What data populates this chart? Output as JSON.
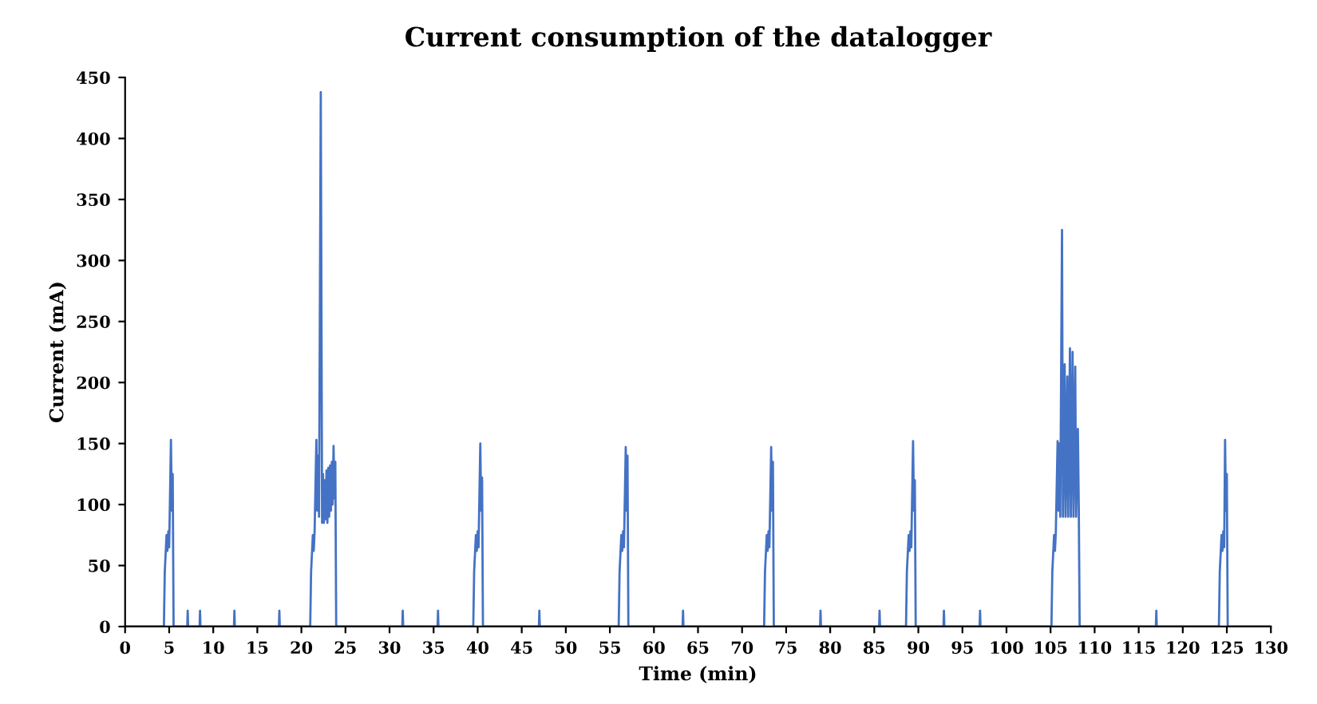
{
  "chart_data": {
    "type": "line",
    "title": "Current consumption of the datalogger",
    "xlabel": "Time (min)",
    "ylabel": "Current (mA)",
    "xlim": [
      0,
      130
    ],
    "xticks": [
      0,
      5,
      10,
      15,
      20,
      25,
      30,
      35,
      40,
      45,
      50,
      55,
      60,
      65,
      70,
      75,
      80,
      85,
      90,
      95,
      100,
      105,
      110,
      115,
      120,
      125,
      130
    ],
    "ylim": [
      0,
      450
    ],
    "yticks": [
      0,
      50,
      100,
      150,
      200,
      250,
      300,
      350,
      400,
      450
    ],
    "grid": false,
    "legend": false,
    "marker": "none",
    "line_style": "solid",
    "series": [
      {
        "color": "#4472c4",
        "x": [
          0,
          4.4,
          4.5,
          4.6,
          4.7,
          4.8,
          4.9,
          5.0,
          5.2,
          5.3,
          5.4,
          5.5,
          7.05,
          7.1,
          7.15,
          8.45,
          8.5,
          8.55,
          12.35,
          12.4,
          12.45,
          17.45,
          17.5,
          17.55,
          21.0,
          21.1,
          21.2,
          21.3,
          21.4,
          21.5,
          21.7,
          21.8,
          21.9,
          22.0,
          22.2,
          22.35,
          22.45,
          22.55,
          22.65,
          22.75,
          22.85,
          22.95,
          23.05,
          23.15,
          23.25,
          23.35,
          23.45,
          23.55,
          23.65,
          23.75,
          23.85,
          23.95,
          31.45,
          31.5,
          31.55,
          35.45,
          35.5,
          35.55,
          39.5,
          39.6,
          39.7,
          39.8,
          39.9,
          40.0,
          40.1,
          40.3,
          40.4,
          40.5,
          40.6,
          46.95,
          47.0,
          47.05,
          56.0,
          56.1,
          56.2,
          56.3,
          56.4,
          56.5,
          56.6,
          56.8,
          56.9,
          57.0,
          57.1,
          63.25,
          63.3,
          63.35,
          72.5,
          72.6,
          72.7,
          72.8,
          72.9,
          73.0,
          73.1,
          73.3,
          73.4,
          73.5,
          73.6,
          78.85,
          78.9,
          78.95,
          85.55,
          85.6,
          85.65,
          88.6,
          88.7,
          88.8,
          88.9,
          89.0,
          89.1,
          89.2,
          89.4,
          89.5,
          89.6,
          89.7,
          92.85,
          92.9,
          92.95,
          96.95,
          97.0,
          97.05,
          105.1,
          105.2,
          105.3,
          105.4,
          105.5,
          105.6,
          105.8,
          105.9,
          106.0,
          106.1,
          106.3,
          106.4,
          106.6,
          106.7,
          106.9,
          107.0,
          107.2,
          107.3,
          107.5,
          107.6,
          107.8,
          107.9,
          108.1,
          108.2,
          108.3,
          116.95,
          117.0,
          117.05,
          124.1,
          124.2,
          124.3,
          124.4,
          124.5,
          124.6,
          124.7,
          124.8,
          124.9,
          125.0,
          125.1,
          130
        ],
        "values": [
          0,
          0,
          45,
          60,
          75,
          62,
          78,
          65,
          153,
          95,
          125,
          0,
          0,
          13,
          0,
          0,
          13,
          0,
          0,
          13,
          0,
          0,
          13,
          0,
          0,
          45,
          60,
          75,
          62,
          78,
          153,
          95,
          140,
          90,
          438,
          85,
          125,
          85,
          120,
          88,
          128,
          85,
          130,
          90,
          132,
          95,
          135,
          100,
          148,
          105,
          135,
          0,
          0,
          13,
          0,
          0,
          13,
          0,
          0,
          45,
          60,
          75,
          62,
          78,
          65,
          150,
          95,
          122,
          0,
          0,
          13,
          0,
          0,
          45,
          60,
          75,
          62,
          78,
          65,
          147,
          95,
          140,
          0,
          0,
          13,
          0,
          0,
          45,
          60,
          75,
          62,
          78,
          65,
          147,
          95,
          135,
          0,
          0,
          13,
          0,
          0,
          13,
          0,
          0,
          45,
          60,
          75,
          62,
          78,
          65,
          152,
          95,
          120,
          0,
          0,
          13,
          0,
          0,
          13,
          0,
          0,
          45,
          60,
          75,
          62,
          78,
          152,
          95,
          150,
          90,
          325,
          90,
          215,
          90,
          205,
          90,
          228,
          90,
          225,
          90,
          213,
          90,
          162,
          100,
          0,
          0,
          13,
          0,
          0,
          45,
          60,
          75,
          62,
          78,
          65,
          153,
          95,
          125,
          0,
          0
        ]
      }
    ]
  }
}
